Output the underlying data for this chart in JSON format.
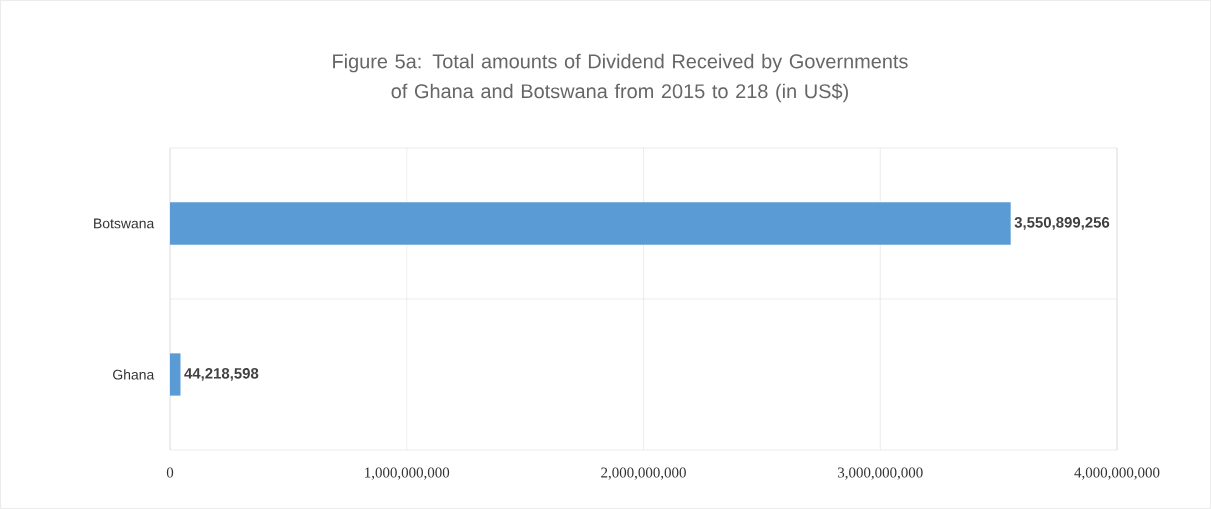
{
  "chart_data": {
    "type": "bar",
    "orientation": "horizontal",
    "title": "Figure 5a: Total amounts of Dividend Received by Governments of Ghana and Botswana from 2015 to 218 (in US$)",
    "categories": [
      "Botswana",
      "Ghana"
    ],
    "values": [
      3550899256,
      44218598
    ],
    "value_labels": [
      "3,550,899,256",
      "44,218,598"
    ],
    "color": "#5b9bd5",
    "xlim": [
      0,
      4000000000
    ],
    "xticks": [
      0,
      {
        "value": 1000000000,
        "label": "1,000,000,000"
      },
      {
        "value": 2000000000,
        "label": "2,000,000,000"
      },
      {
        "value": 3000000000,
        "label": "3,000,000,000"
      },
      {
        "value": 4000000000,
        "label": "4,000,000,000"
      }
    ],
    "grid": "x"
  }
}
